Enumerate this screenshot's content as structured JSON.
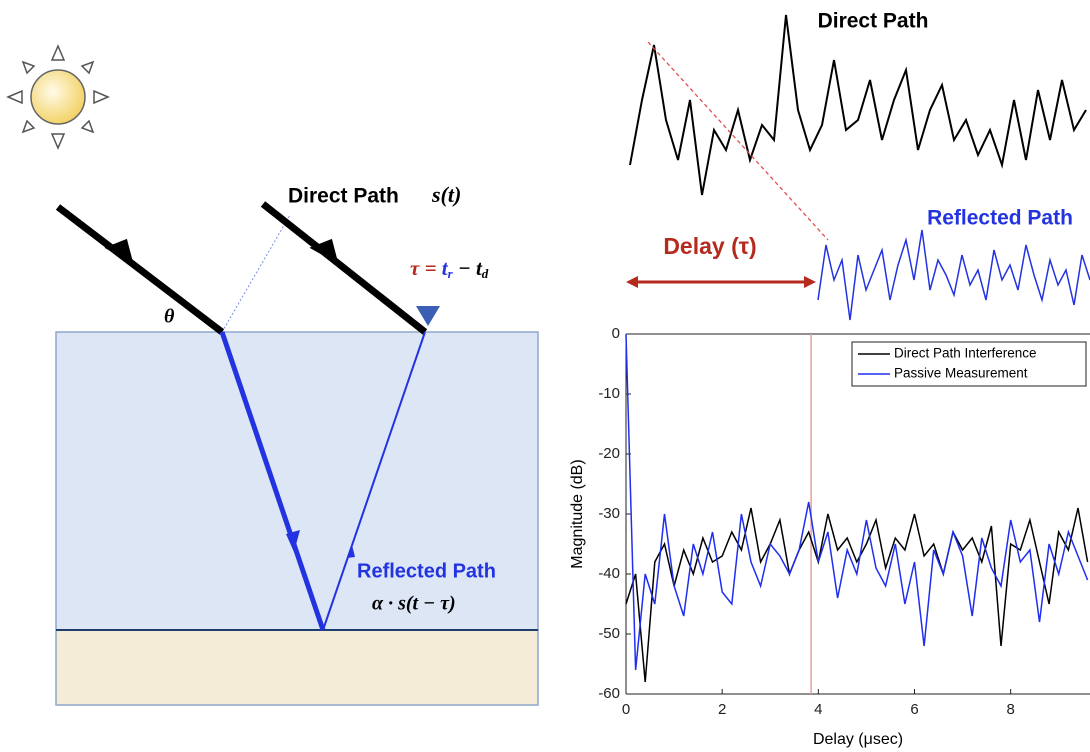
{
  "diagram": {
    "direct_path": "Direct Path",
    "direct_signal": "s(t)",
    "angle": "θ",
    "formula": {
      "lhs": "τ =",
      "t1": "t",
      "sub1": "r",
      "minus": "−",
      "t2": "t",
      "sub2": "d"
    },
    "reflected_path": "Reflected Path",
    "reflected_signal": "α · s(t − τ)",
    "wave_direct_title": "Direct Path",
    "wave_reflected_title": "Reflected Path",
    "delay": "Delay (τ)"
  },
  "chart_data": {
    "type": "line",
    "xlabel": "Delay (μsec)",
    "ylabel": "Magnitude (dB)",
    "xlim": [
      0,
      9.65
    ],
    "ylim": [
      -60,
      0
    ],
    "xticks": [
      0,
      2,
      4,
      6,
      8
    ],
    "yticks": [
      0,
      -10,
      -20,
      -30,
      -40,
      -50,
      -60
    ],
    "marker_x": 3.85,
    "marker_color": "#e8a0a0",
    "legend": "upper right",
    "x": [
      0,
      0.2,
      0.4,
      0.6,
      0.8,
      1,
      1.2,
      1.4,
      1.6,
      1.8,
      2,
      2.2,
      2.4,
      2.6,
      2.8,
      3,
      3.2,
      3.4,
      3.6,
      3.8,
      4,
      4.2,
      4.4,
      4.6,
      4.8,
      5,
      5.2,
      5.4,
      5.6,
      5.8,
      6,
      6.2,
      6.4,
      6.6,
      6.8,
      7,
      7.2,
      7.4,
      7.6,
      7.8,
      8,
      8.2,
      8.4,
      8.6,
      8.8,
      9,
      9.2,
      9.4,
      9.6
    ],
    "series": [
      {
        "name": "Direct Path Interference",
        "color": "#000000",
        "values": [
          -45,
          -40,
          -58,
          -38,
          -35,
          -42,
          -36,
          -40,
          -34,
          -38,
          -37,
          -33,
          -36,
          -29,
          -38,
          -35,
          -31,
          -40,
          -36,
          -33,
          -38,
          -30,
          -36,
          -34,
          -38,
          -35,
          -31,
          -39,
          -34,
          -36,
          -30,
          -37,
          -35,
          -40,
          -33,
          -36,
          -34,
          -38,
          -32,
          -52,
          -35,
          -36,
          -31,
          -38,
          -45,
          -33,
          -36,
          -29,
          -38
        ]
      },
      {
        "name": "Passive Measurement",
        "color": "#1f2ef0",
        "values": [
          0,
          -56,
          -40,
          -45,
          -30,
          -42,
          -47,
          -35,
          -40,
          -33,
          -43,
          -45,
          -30,
          -38,
          -42,
          -35,
          -37,
          -40,
          -36,
          -28,
          -38,
          -33,
          -44,
          -36,
          -40,
          -31,
          -39,
          -42,
          -35,
          -45,
          -38,
          -52,
          -36,
          -40,
          -33,
          -37,
          -47,
          -34,
          -39,
          -42,
          -31,
          -38,
          -36,
          -48,
          -35,
          -40,
          -33,
          -37,
          -41
        ]
      }
    ]
  }
}
